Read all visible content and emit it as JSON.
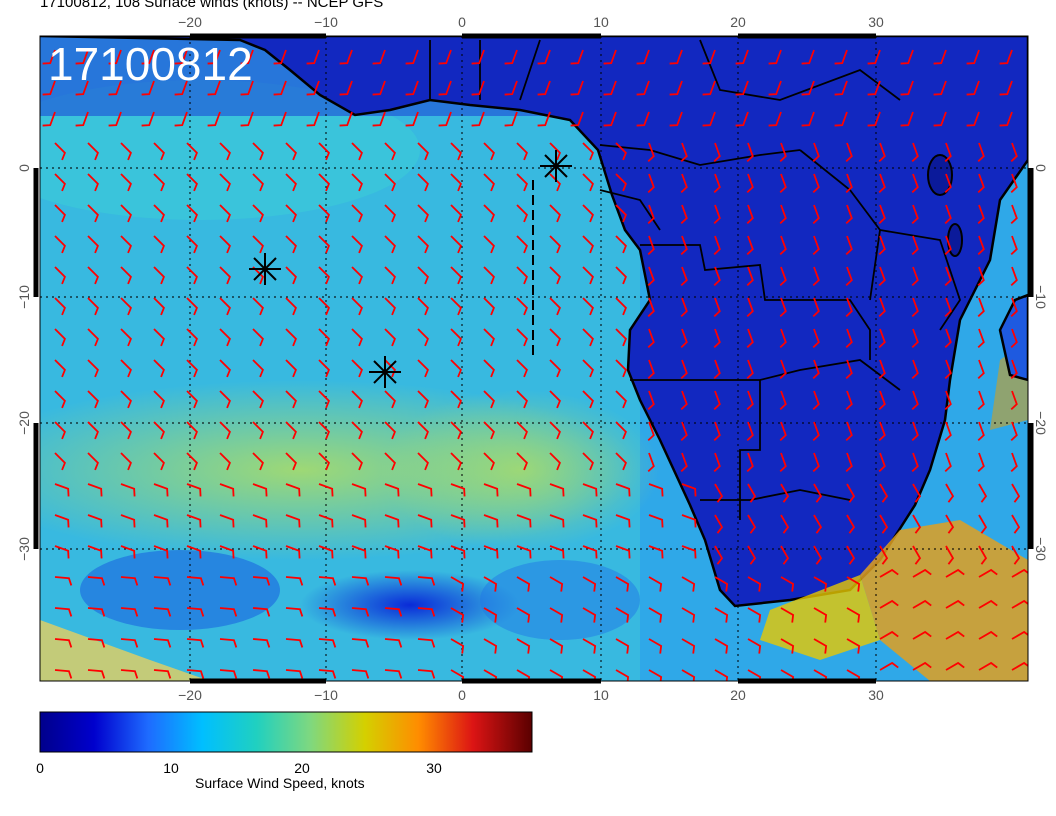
{
  "title": "17100812, 108 Surface winds (knots) -- NCEP GFS",
  "stamp": "17100812",
  "map": {
    "lon_range": [
      -30,
      40
    ],
    "lat_range": [
      -40,
      10
    ],
    "lon_ticks": [
      "−20",
      "−10",
      "0",
      "10",
      "20",
      "30"
    ],
    "lat_ticks": [
      "0",
      "−10",
      "−20",
      "−30"
    ],
    "grid": "dotted",
    "barb_color": "#ff0000"
  },
  "colorbar": {
    "label": "Surface Wind Speed, knots",
    "range": [
      0,
      36
    ],
    "ticks": [
      "0",
      "10",
      "20",
      "30"
    ],
    "stops": [
      "#00008b",
      "#0000cd",
      "#1e6bff",
      "#00bfff",
      "#20d0c0",
      "#7fd87f",
      "#d4d000",
      "#ff8c00",
      "#dc1414",
      "#5a0000"
    ]
  },
  "markers": [
    "storm-marker",
    "storm-marker",
    "storm-marker"
  ]
}
